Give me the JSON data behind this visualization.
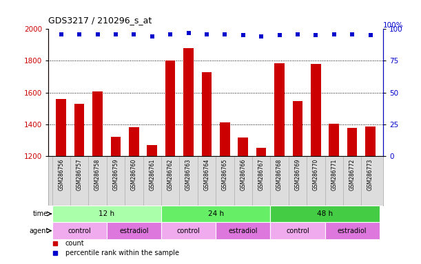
{
  "title": "GDS3217 / 210296_s_at",
  "samples": [
    "GSM286756",
    "GSM286757",
    "GSM286758",
    "GSM286759",
    "GSM286760",
    "GSM286761",
    "GSM286762",
    "GSM286763",
    "GSM286764",
    "GSM286765",
    "GSM286766",
    "GSM286767",
    "GSM286768",
    "GSM286769",
    "GSM286770",
    "GSM286771",
    "GSM286772",
    "GSM286773"
  ],
  "counts": [
    1560,
    1530,
    1605,
    1320,
    1380,
    1270,
    1800,
    1880,
    1730,
    1410,
    1315,
    1250,
    1785,
    1545,
    1780,
    1405,
    1375,
    1385
  ],
  "percentiles": [
    96,
    96,
    96,
    96,
    96,
    94,
    96,
    97,
    96,
    96,
    95,
    94,
    95,
    96,
    95,
    96,
    96,
    95
  ],
  "ylim_left": [
    1200,
    2000
  ],
  "ylim_right": [
    0,
    100
  ],
  "yticks_left": [
    1200,
    1400,
    1600,
    1800,
    2000
  ],
  "yticks_right": [
    0,
    25,
    50,
    75,
    100
  ],
  "bar_color": "#cc0000",
  "dot_color": "#0000cc",
  "grid_color": "#000000",
  "time_groups": [
    {
      "label": "12 h",
      "start": 0,
      "end": 6,
      "color": "#aaffaa"
    },
    {
      "label": "24 h",
      "start": 6,
      "end": 12,
      "color": "#66ee66"
    },
    {
      "label": "48 h",
      "start": 12,
      "end": 18,
      "color": "#44cc44"
    }
  ],
  "agent_groups": [
    {
      "label": "control",
      "start": 0,
      "end": 3,
      "color": "#f0aaee"
    },
    {
      "label": "estradiol",
      "start": 3,
      "end": 6,
      "color": "#dd77dd"
    },
    {
      "label": "control",
      "start": 6,
      "end": 9,
      "color": "#f0aaee"
    },
    {
      "label": "estradiol",
      "start": 9,
      "end": 12,
      "color": "#dd77dd"
    },
    {
      "label": "control",
      "start": 12,
      "end": 15,
      "color": "#f0aaee"
    },
    {
      "label": "estradiol",
      "start": 15,
      "end": 18,
      "color": "#dd77dd"
    }
  ],
  "legend_count_label": "count",
  "legend_pct_label": "percentile rank within the sample",
  "time_label": "time",
  "agent_label": "agent",
  "background_color": "#ffffff",
  "label_area_color": "#dddddd",
  "n_samples": 18
}
